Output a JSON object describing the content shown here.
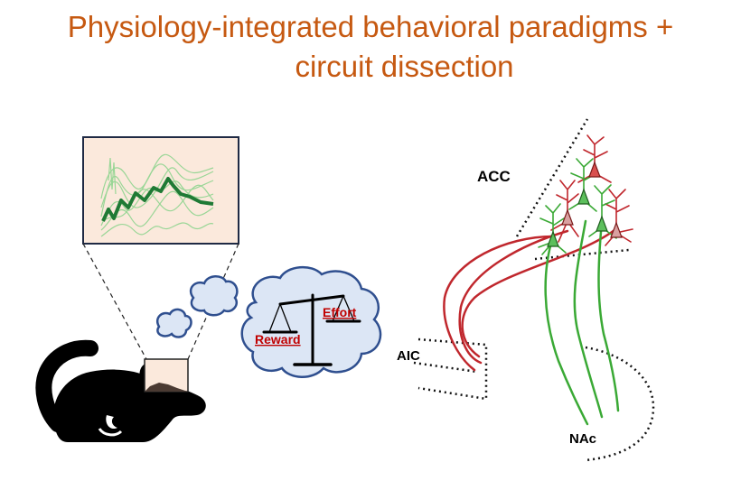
{
  "title": {
    "line1": "Physiology-integrated behavioral paradigms +",
    "line2": "circuit dissection"
  },
  "balance": {
    "left_label": "Reward",
    "right_label": "Effort"
  },
  "regions": {
    "acc": "ACC",
    "aic": "AIC",
    "nac": "NAc"
  },
  "colors": {
    "title": "#c65911",
    "trace_light": "#8fd48f",
    "trace_mean": "#1f7a35",
    "red_neuron": "#c0272d",
    "green_neuron": "#3aa935",
    "thought_cloud_fill": "#dce6f5",
    "thought_cloud_stroke": "#2f4f8f",
    "label_red": "#c00000",
    "inset_bg": "#fbe9dc"
  },
  "icons": [
    "mouse-silhouette-icon",
    "balance-scale-icon",
    "thought-cloud-icon"
  ]
}
